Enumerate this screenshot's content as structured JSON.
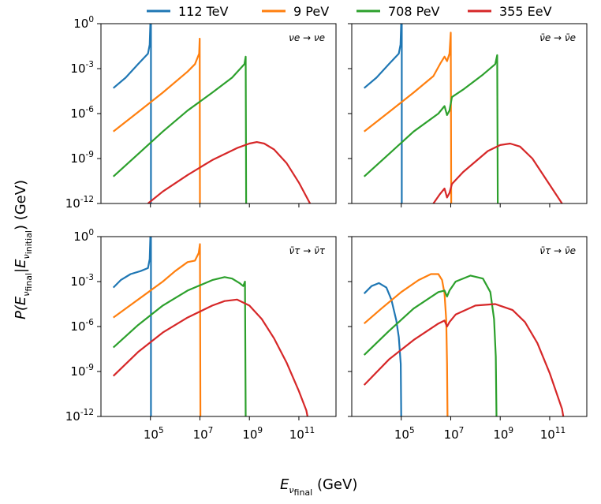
{
  "legend": [
    {
      "label": "112 TeV",
      "color": "#1f77b4"
    },
    {
      "label": "9 PeV",
      "color": "#ff7f0e"
    },
    {
      "label": "708 PeV",
      "color": "#2ca02c"
    },
    {
      "label": "355 EeV",
      "color": "#d62728"
    }
  ],
  "axes": {
    "ylabel": {
      "main": "P(E",
      "sub1": "ν",
      "sub2": "final",
      "mid": "|E",
      "sub3": "ν",
      "sub4": "initial",
      "tail": ") (GeV)"
    },
    "xlabel": {
      "main": "E",
      "sub1": "ν",
      "sub2": "final",
      "tail": " (GeV)"
    },
    "y_ticks": [
      "0",
      "-3",
      "-6",
      "-9",
      "-12"
    ],
    "x_ticks": [
      "5",
      "7",
      "9",
      "11"
    ],
    "tick_base": "10"
  },
  "chart_data": [
    {
      "type": "line",
      "panel_label": "νe → νe",
      "xlim": [
        3.0,
        12.5
      ],
      "ylim": [
        -12,
        0
      ],
      "log_x": true,
      "log_y": true,
      "series": [
        {
          "name": "112 TeV",
          "color": "#1f77b4",
          "points": [
            [
              3.5,
              -4.3
            ],
            [
              4.0,
              -3.6
            ],
            [
              4.5,
              -2.7
            ],
            [
              4.9,
              -2.0
            ],
            [
              4.97,
              -1.4
            ],
            [
              5.0,
              0.1
            ],
            [
              5.02,
              0.0
            ],
            [
              5.02,
              -12.0
            ]
          ]
        },
        {
          "name": "9 PeV",
          "color": "#ff7f0e",
          "points": [
            [
              3.5,
              -7.2
            ],
            [
              4.5,
              -5.9
            ],
            [
              5.5,
              -4.6
            ],
            [
              6.5,
              -3.2
            ],
            [
              6.8,
              -2.7
            ],
            [
              6.97,
              -2.0
            ],
            [
              6.99,
              -1.0
            ],
            [
              7.0,
              -12.0
            ]
          ]
        },
        {
          "name": "708 PeV",
          "color": "#2ca02c",
          "points": [
            [
              3.5,
              -10.2
            ],
            [
              4.5,
              -8.7
            ],
            [
              5.5,
              -7.2
            ],
            [
              6.5,
              -5.8
            ],
            [
              7.5,
              -4.6
            ],
            [
              8.3,
              -3.6
            ],
            [
              8.8,
              -2.7
            ],
            [
              8.85,
              -2.2
            ],
            [
              8.87,
              -12.0
            ]
          ]
        },
        {
          "name": "355 EeV",
          "color": "#d62728",
          "points": [
            [
              4.9,
              -12.0
            ],
            [
              5.5,
              -11.2
            ],
            [
              6.5,
              -10.1
            ],
            [
              7.5,
              -9.1
            ],
            [
              8.5,
              -8.3
            ],
            [
              9.0,
              -8.0
            ],
            [
              9.3,
              -7.9
            ],
            [
              9.6,
              -8.0
            ],
            [
              10.0,
              -8.4
            ],
            [
              10.5,
              -9.3
            ],
            [
              11.0,
              -10.6
            ],
            [
              11.45,
              -12.0
            ]
          ]
        }
      ]
    },
    {
      "type": "line",
      "panel_label": "ν̄e → ν̄e",
      "xlim": [
        3.0,
        12.5
      ],
      "ylim": [
        -12,
        0
      ],
      "log_x": true,
      "log_y": true,
      "series": [
        {
          "name": "112 TeV",
          "color": "#1f77b4",
          "points": [
            [
              3.5,
              -4.3
            ],
            [
              4.0,
              -3.6
            ],
            [
              4.5,
              -2.7
            ],
            [
              4.9,
              -2.0
            ],
            [
              4.97,
              -1.4
            ],
            [
              5.0,
              0.1
            ],
            [
              5.02,
              0.0
            ],
            [
              5.02,
              -12.0
            ]
          ]
        },
        {
          "name": "9 PeV",
          "color": "#ff7f0e",
          "points": [
            [
              3.5,
              -7.2
            ],
            [
              4.5,
              -5.9
            ],
            [
              5.5,
              -4.6
            ],
            [
              6.3,
              -3.5
            ],
            [
              6.6,
              -2.6
            ],
            [
              6.75,
              -2.2
            ],
            [
              6.85,
              -2.5
            ],
            [
              6.95,
              -2.0
            ],
            [
              7.0,
              -0.6
            ],
            [
              7.02,
              -12.0
            ]
          ]
        },
        {
          "name": "708 PeV",
          "color": "#2ca02c",
          "points": [
            [
              3.5,
              -10.2
            ],
            [
              4.5,
              -8.7
            ],
            [
              5.5,
              -7.2
            ],
            [
              6.5,
              -6.0
            ],
            [
              6.75,
              -5.5
            ],
            [
              6.85,
              -6.1
            ],
            [
              6.95,
              -5.8
            ],
            [
              7.05,
              -4.9
            ],
            [
              7.5,
              -4.4
            ],
            [
              8.3,
              -3.4
            ],
            [
              8.8,
              -2.7
            ],
            [
              8.88,
              -2.1
            ],
            [
              8.9,
              -12.0
            ]
          ]
        },
        {
          "name": "355 EeV",
          "color": "#d62728",
          "points": [
            [
              6.3,
              -12.0
            ],
            [
              6.55,
              -11.4
            ],
            [
              6.75,
              -11.0
            ],
            [
              6.85,
              -11.6
            ],
            [
              6.95,
              -11.3
            ],
            [
              7.05,
              -10.7
            ],
            [
              7.5,
              -9.9
            ],
            [
              8.5,
              -8.5
            ],
            [
              9.0,
              -8.1
            ],
            [
              9.4,
              -8.0
            ],
            [
              9.8,
              -8.2
            ],
            [
              10.3,
              -9.0
            ],
            [
              10.9,
              -10.5
            ],
            [
              11.5,
              -12.0
            ]
          ]
        }
      ]
    },
    {
      "type": "line",
      "panel_label": "ν̄τ → ν̄τ",
      "xlim": [
        3.0,
        12.5
      ],
      "ylim": [
        -12,
        0
      ],
      "log_x": true,
      "log_y": true,
      "series": [
        {
          "name": "112 TeV",
          "color": "#1f77b4",
          "points": [
            [
              3.5,
              -3.4
            ],
            [
              3.8,
              -2.9
            ],
            [
              4.2,
              -2.5
            ],
            [
              4.6,
              -2.3
            ],
            [
              4.9,
              -2.1
            ],
            [
              4.97,
              -1.5
            ],
            [
              5.0,
              0.1
            ],
            [
              5.02,
              0.0
            ],
            [
              5.02,
              -12.0
            ]
          ]
        },
        {
          "name": "9 PeV",
          "color": "#ff7f0e",
          "points": [
            [
              3.5,
              -5.4
            ],
            [
              4.5,
              -4.2
            ],
            [
              5.5,
              -3.0
            ],
            [
              6.0,
              -2.3
            ],
            [
              6.5,
              -1.7
            ],
            [
              6.8,
              -1.6
            ],
            [
              6.95,
              -1.1
            ],
            [
              7.0,
              -0.5
            ],
            [
              7.02,
              -12.0
            ]
          ]
        },
        {
          "name": "708 PeV",
          "color": "#2ca02c",
          "points": [
            [
              3.5,
              -7.4
            ],
            [
              4.5,
              -5.9
            ],
            [
              5.5,
              -4.6
            ],
            [
              6.5,
              -3.6
            ],
            [
              7.5,
              -2.9
            ],
            [
              8.0,
              -2.7
            ],
            [
              8.3,
              -2.8
            ],
            [
              8.6,
              -3.1
            ],
            [
              8.75,
              -3.3
            ],
            [
              8.82,
              -3.0
            ],
            [
              8.85,
              -12.0
            ]
          ]
        },
        {
          "name": "355 EeV",
          "color": "#d62728",
          "points": [
            [
              3.5,
              -9.3
            ],
            [
              4.5,
              -7.7
            ],
            [
              5.5,
              -6.4
            ],
            [
              6.5,
              -5.4
            ],
            [
              7.5,
              -4.6
            ],
            [
              8.0,
              -4.3
            ],
            [
              8.5,
              -4.2
            ],
            [
              9.0,
              -4.6
            ],
            [
              9.5,
              -5.5
            ],
            [
              10.0,
              -6.8
            ],
            [
              10.5,
              -8.4
            ],
            [
              11.0,
              -10.3
            ],
            [
              11.3,
              -11.6
            ],
            [
              11.35,
              -12.0
            ]
          ]
        }
      ]
    },
    {
      "type": "line",
      "panel_label": "ν̄τ → ν̄e",
      "xlim": [
        3.0,
        12.5
      ],
      "ylim": [
        -12,
        0
      ],
      "log_x": true,
      "log_y": true,
      "series": [
        {
          "name": "112 TeV",
          "color": "#1f77b4",
          "points": [
            [
              3.5,
              -3.8
            ],
            [
              3.8,
              -3.3
            ],
            [
              4.1,
              -3.1
            ],
            [
              4.4,
              -3.4
            ],
            [
              4.6,
              -4.2
            ],
            [
              4.8,
              -5.6
            ],
            [
              4.9,
              -6.7
            ],
            [
              4.98,
              -8.5
            ],
            [
              5.0,
              -12.0
            ]
          ]
        },
        {
          "name": "9 PeV",
          "color": "#ff7f0e",
          "points": [
            [
              3.5,
              -5.8
            ],
            [
              4.2,
              -4.8
            ],
            [
              5.0,
              -3.7
            ],
            [
              5.7,
              -2.9
            ],
            [
              6.2,
              -2.5
            ],
            [
              6.5,
              -2.5
            ],
            [
              6.65,
              -2.9
            ],
            [
              6.75,
              -3.8
            ],
            [
              6.82,
              -5.6
            ],
            [
              6.85,
              -8.5
            ],
            [
              6.87,
              -12.0
            ]
          ]
        },
        {
          "name": "708 PeV",
          "color": "#2ca02c",
          "points": [
            [
              3.5,
              -7.9
            ],
            [
              4.5,
              -6.3
            ],
            [
              5.5,
              -4.8
            ],
            [
              6.5,
              -3.7
            ],
            [
              6.75,
              -3.6
            ],
            [
              6.85,
              -4.0
            ],
            [
              6.95,
              -3.6
            ],
            [
              7.2,
              -3.0
            ],
            [
              7.8,
              -2.6
            ],
            [
              8.3,
              -2.8
            ],
            [
              8.6,
              -3.7
            ],
            [
              8.75,
              -5.5
            ],
            [
              8.82,
              -8.0
            ],
            [
              8.85,
              -12.0
            ]
          ]
        },
        {
          "name": "355 EeV",
          "color": "#d62728",
          "points": [
            [
              3.5,
              -9.9
            ],
            [
              4.5,
              -8.2
            ],
            [
              5.5,
              -6.9
            ],
            [
              6.5,
              -5.8
            ],
            [
              6.75,
              -5.6
            ],
            [
              6.85,
              -6.0
            ],
            [
              6.95,
              -5.7
            ],
            [
              7.2,
              -5.2
            ],
            [
              8.0,
              -4.6
            ],
            [
              8.8,
              -4.5
            ],
            [
              9.5,
              -4.9
            ],
            [
              10.0,
              -5.7
            ],
            [
              10.5,
              -7.1
            ],
            [
              11.0,
              -9.1
            ],
            [
              11.5,
              -11.5
            ],
            [
              11.55,
              -12.0
            ]
          ]
        }
      ]
    }
  ]
}
